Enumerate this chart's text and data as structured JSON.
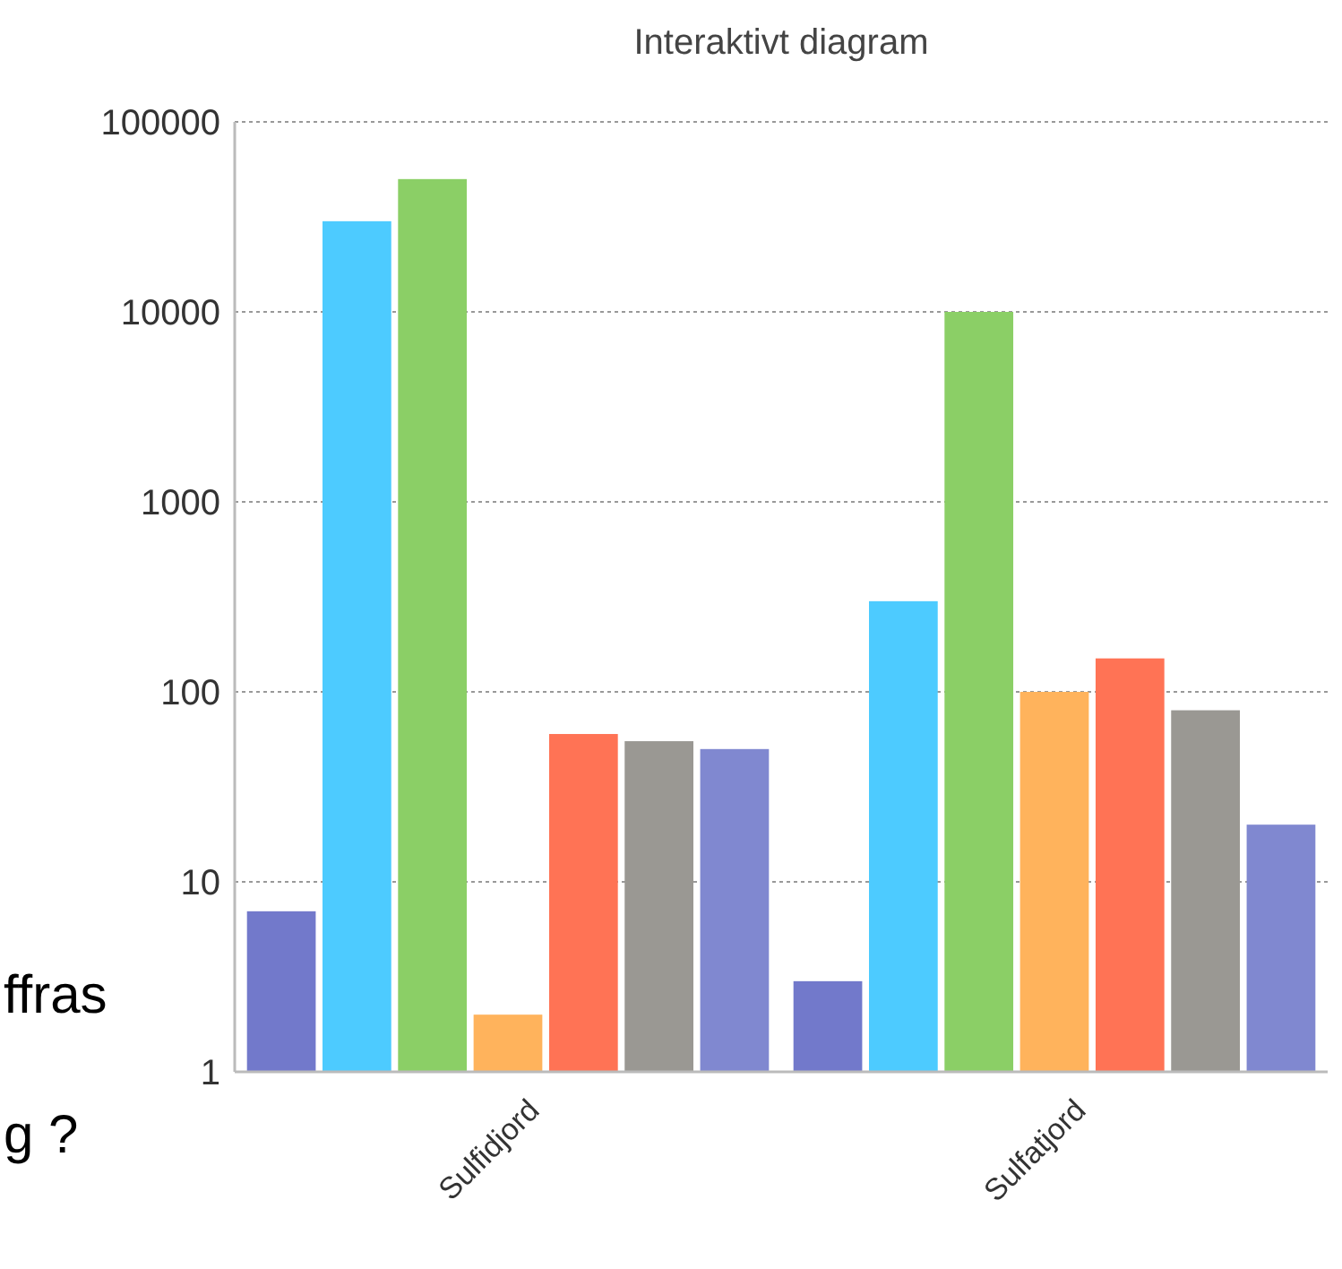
{
  "chart_data": {
    "type": "bar",
    "title": "Interaktivt diagram",
    "categories": [
      "Sulfidjord",
      "Sulfatjord"
    ],
    "series": [
      {
        "color": "#7279cb",
        "values": [
          7,
          3
        ]
      },
      {
        "color": "#4dcbff",
        "values": [
          30000,
          300
        ]
      },
      {
        "color": "#8bcf66",
        "values": [
          50000,
          10000
        ]
      },
      {
        "color": "#ffb35c",
        "values": [
          2,
          100
        ]
      },
      {
        "color": "#ff7355",
        "values": [
          60,
          150
        ]
      },
      {
        "color": "#9a9893",
        "values": [
          55,
          80
        ]
      },
      {
        "color": "#8088d0",
        "values": [
          50,
          20
        ]
      }
    ],
    "log": true,
    "ylim": [
      1,
      100000
    ],
    "yticks": [
      1,
      10,
      100,
      1000,
      10000,
      100000
    ],
    "grid": "y",
    "annotations": [
      "ffras",
      "g ?"
    ]
  }
}
